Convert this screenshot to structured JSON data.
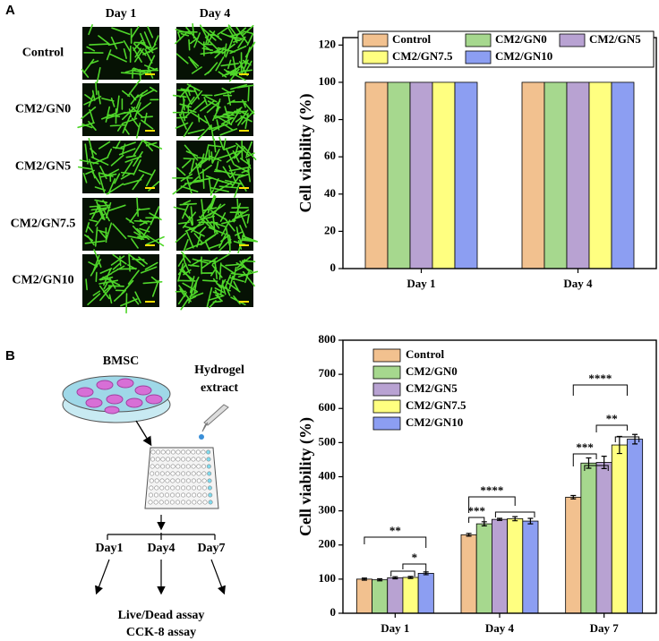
{
  "panels": [
    "A",
    "B"
  ],
  "images": {
    "columns": [
      "Day 1",
      "Day 4"
    ],
    "rows": [
      "Control",
      "CM2/GN0",
      "CM2/GN5",
      "CM2/GN7.5",
      "CM2/GN10"
    ]
  },
  "schematic": {
    "cells": "BMSC",
    "extract": [
      "Hydrogel",
      "extract"
    ],
    "days": [
      "Day1",
      "Day4",
      "Day7"
    ],
    "assays": [
      "Live/Dead assay",
      "CCK-8 assay"
    ]
  },
  "chart_data": [
    {
      "type": "bar",
      "ylabel": "Cell viability (%)",
      "categories": [
        "Day 1",
        "Day 4"
      ],
      "ylim": [
        0,
        124
      ],
      "yticks": [
        0,
        20,
        40,
        60,
        80,
        100,
        120
      ],
      "series": [
        {
          "name": "Control",
          "color": "#f2c18f",
          "values": [
            100,
            100
          ]
        },
        {
          "name": "CM2/GN0",
          "color": "#a6d88e",
          "values": [
            100,
            100
          ]
        },
        {
          "name": "CM2/GN5",
          "color": "#b8a2d2",
          "values": [
            100,
            100
          ]
        },
        {
          "name": "CM2/GN7.5",
          "color": "#ffff80",
          "values": [
            100,
            100
          ]
        },
        {
          "name": "CM2/GN10",
          "color": "#8c9ef2",
          "values": [
            100,
            100
          ]
        }
      ]
    },
    {
      "type": "bar",
      "ylabel": "Cell viability (%)",
      "categories": [
        "Day 1",
        "Day 4",
        "Day 7"
      ],
      "ylim": [
        0,
        800
      ],
      "yticks": [
        0,
        100,
        200,
        300,
        400,
        500,
        600,
        700,
        800
      ],
      "series": [
        {
          "name": "Control",
          "color": "#f2c18f",
          "values": [
            100,
            230,
            340
          ],
          "errors": [
            3,
            4,
            5
          ]
        },
        {
          "name": "CM2/GN0",
          "color": "#a6d88e",
          "values": [
            98,
            262,
            440
          ],
          "errors": [
            3,
            6,
            15
          ]
        },
        {
          "name": "CM2/GN5",
          "color": "#b8a2d2",
          "values": [
            104,
            275,
            442
          ],
          "errors": [
            3,
            3,
            18
          ]
        },
        {
          "name": "CM2/GN7.5",
          "color": "#ffff80",
          "values": [
            105,
            277,
            493
          ],
          "errors": [
            3,
            6,
            25
          ]
        },
        {
          "name": "CM2/GN10",
          "color": "#8c9ef2",
          "values": [
            117,
            270,
            510
          ],
          "errors": [
            4,
            8,
            14
          ]
        }
      ],
      "annotations": [
        "**",
        "*",
        "***",
        "****",
        "***",
        "**",
        "****"
      ]
    }
  ]
}
